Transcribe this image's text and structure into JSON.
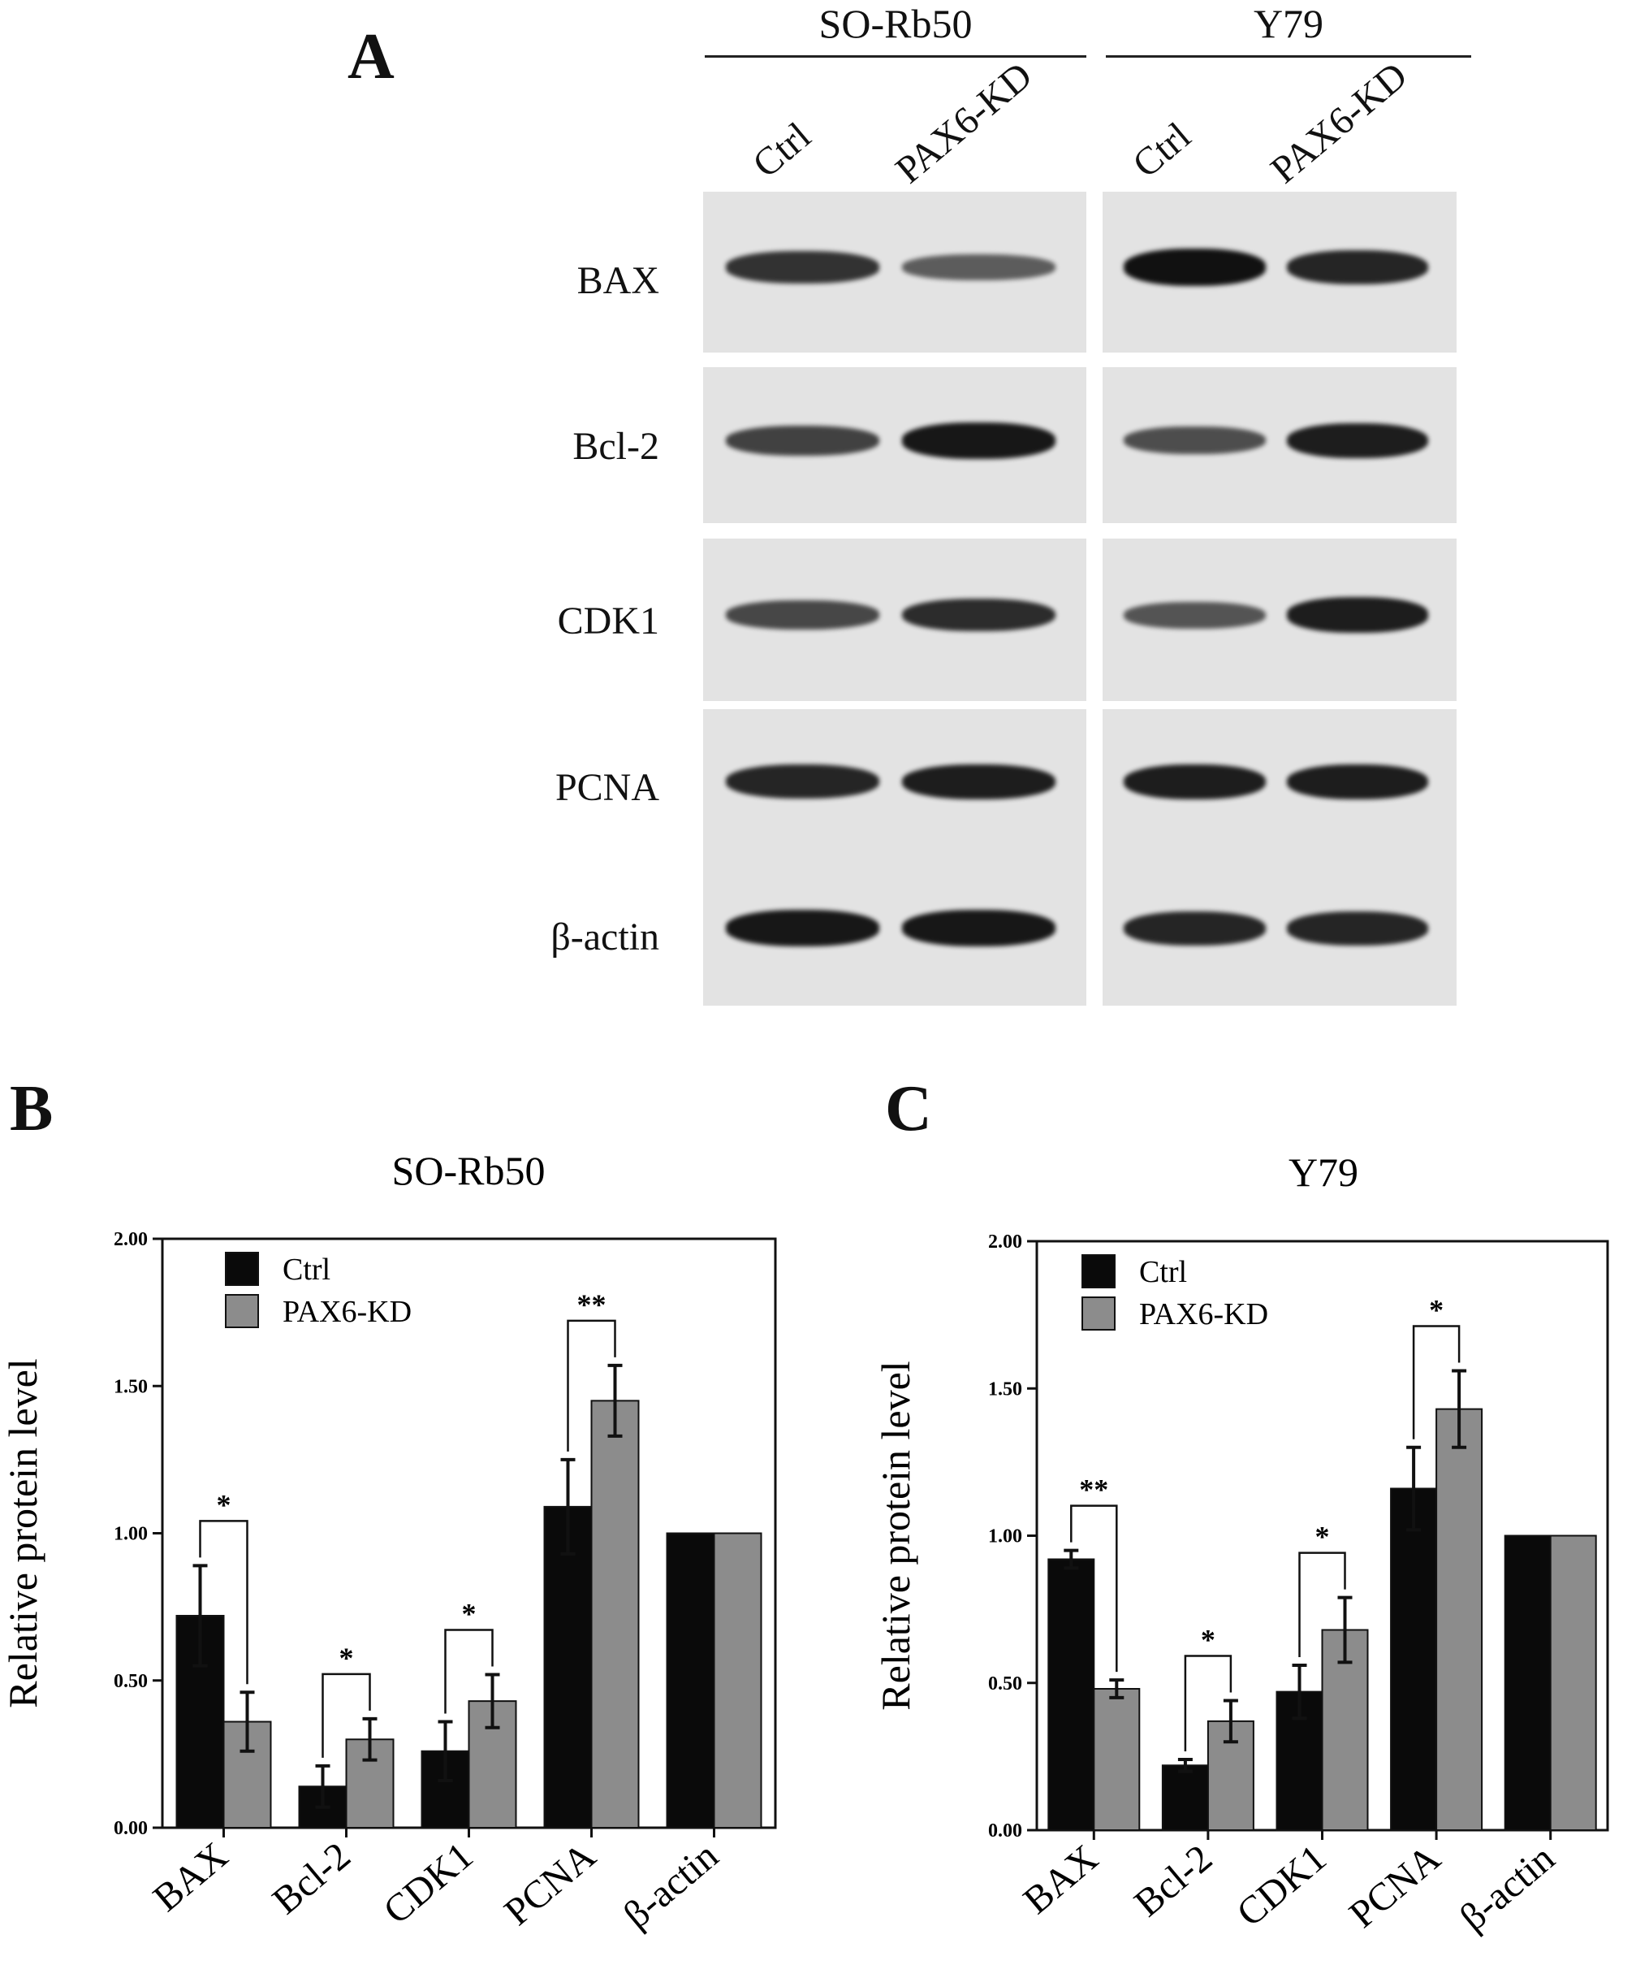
{
  "panel_a": {
    "letter": "A",
    "cell_lines": [
      "SO-Rb50",
      "Y79"
    ],
    "lanes": [
      "Ctrl",
      "PAX6-KD",
      "Ctrl",
      "PAX6-KD"
    ],
    "proteins": [
      "BAX",
      "Bcl-2",
      "CDK1",
      "PCNA",
      "β-actin"
    ],
    "band_intensity": [
      [
        0.75,
        0.45,
        1.0,
        0.85
      ],
      [
        0.65,
        0.95,
        0.55,
        0.9
      ],
      [
        0.6,
        0.8,
        0.5,
        0.9
      ],
      [
        0.85,
        0.9,
        0.9,
        0.9
      ],
      [
        0.95,
        0.95,
        0.85,
        0.85
      ]
    ]
  },
  "colors": {
    "ctrl": "#0a0a0a",
    "pax6_kd": "#8c8c8c",
    "band": "#111111",
    "blot_bg": "#e3e3e3"
  },
  "chart_data": [
    {
      "letter": "B",
      "type": "bar",
      "title": "SO-Rb50",
      "ylabel": "Relative protein level",
      "xlabel": "",
      "categories": [
        "BAX",
        "Bcl-2",
        "CDK1",
        "PCNA",
        "β-actin"
      ],
      "ylim": [
        0,
        2
      ],
      "yticks": [
        "0.00",
        "0.50",
        "1.00",
        "1.50",
        "2.00"
      ],
      "legend_position": "top-left",
      "series": [
        {
          "name": "Ctrl",
          "values": [
            0.72,
            0.14,
            0.26,
            1.09,
            1.0
          ],
          "errors": [
            0.17,
            0.07,
            0.1,
            0.16,
            0.0
          ]
        },
        {
          "name": "PAX6-KD",
          "values": [
            0.36,
            0.3,
            0.43,
            1.45,
            1.0
          ],
          "errors": [
            0.1,
            0.07,
            0.09,
            0.12,
            0.0
          ]
        }
      ],
      "significance": [
        {
          "category": "BAX",
          "label": "*"
        },
        {
          "category": "Bcl-2",
          "label": "*"
        },
        {
          "category": "CDK1",
          "label": "*"
        },
        {
          "category": "PCNA",
          "label": "**"
        }
      ]
    },
    {
      "letter": "C",
      "type": "bar",
      "title": "Y79",
      "ylabel": "Relative protein level",
      "xlabel": "",
      "categories": [
        "BAX",
        "Bcl-2",
        "CDK1",
        "PCNA",
        "β-actin"
      ],
      "ylim": [
        0,
        2
      ],
      "yticks": [
        "0.00",
        "0.50",
        "1.00",
        "1.50",
        "2.00"
      ],
      "legend_position": "top-left",
      "series": [
        {
          "name": "Ctrl",
          "values": [
            0.92,
            0.22,
            0.47,
            1.16,
            1.0
          ],
          "errors": [
            0.03,
            0.02,
            0.09,
            0.14,
            0.0
          ]
        },
        {
          "name": "PAX6-KD",
          "values": [
            0.48,
            0.37,
            0.68,
            1.43,
            1.0
          ],
          "errors": [
            0.03,
            0.07,
            0.11,
            0.13,
            0.0
          ]
        }
      ],
      "significance": [
        {
          "category": "BAX",
          "label": "**"
        },
        {
          "category": "Bcl-2",
          "label": "*"
        },
        {
          "category": "CDK1",
          "label": "*"
        },
        {
          "category": "PCNA",
          "label": "*"
        }
      ]
    }
  ]
}
